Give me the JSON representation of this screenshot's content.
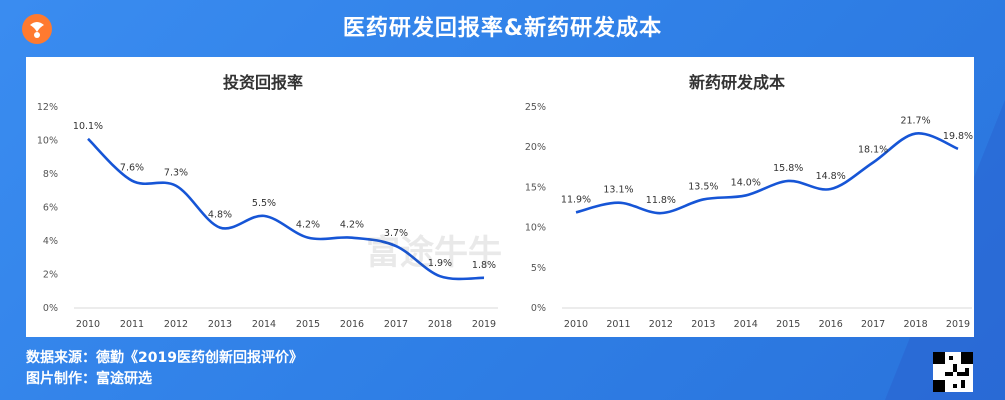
{
  "header": {
    "title": "医药研发回报率&新药研发成本"
  },
  "footer": {
    "source": "数据来源：德勤《2019医药创新回报评价》",
    "made_by": "图片制作：富途研选"
  },
  "watermark": {
    "text": "富途牛牛"
  },
  "colors": {
    "line": "#1655d6",
    "background": "#3a8cf0"
  },
  "chart_data": [
    {
      "type": "line",
      "title": "投资回报率",
      "x": [
        "2010",
        "2011",
        "2012",
        "2013",
        "2014",
        "2015",
        "2016",
        "2017",
        "2018",
        "2019"
      ],
      "values": [
        10.1,
        7.6,
        7.3,
        4.8,
        5.5,
        4.2,
        4.2,
        3.7,
        1.9,
        1.8
      ],
      "labels": [
        "10.1%",
        "7.6%",
        "7.3%",
        "4.8%",
        "5.5%",
        "4.2%",
        "4.2%",
        "3.7%",
        "1.9%",
        "1.8%"
      ],
      "yticks": [
        "0%",
        "2%",
        "4%",
        "6%",
        "8%",
        "10%",
        "12%"
      ],
      "ylim": [
        0,
        12
      ],
      "grid": false,
      "smooth": true
    },
    {
      "type": "line",
      "title": "新药研发成本",
      "x": [
        "2010",
        "2011",
        "2012",
        "2013",
        "2014",
        "2015",
        "2016",
        "2017",
        "2018",
        "2019"
      ],
      "values": [
        11.9,
        13.1,
        11.8,
        13.5,
        14.0,
        15.8,
        14.8,
        18.1,
        21.7,
        19.8
      ],
      "labels": [
        "11.9%",
        "13.1%",
        "11.8%",
        "13.5%",
        "14.0%",
        "15.8%",
        "14.8%",
        "18.1%",
        "21.7%",
        "19.8%"
      ],
      "yticks": [
        "0%",
        "5%",
        "10%",
        "15%",
        "20%",
        "25%"
      ],
      "ylim": [
        0,
        25
      ],
      "grid": false,
      "smooth": true
    }
  ]
}
